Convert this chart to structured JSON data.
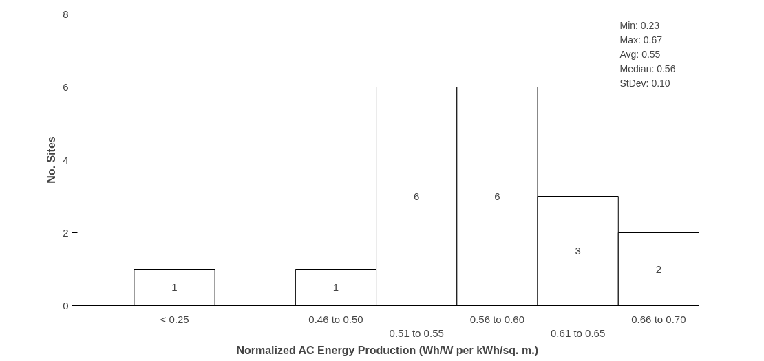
{
  "chart_data": {
    "type": "bar",
    "xlabel": "Normalized AC Energy Production (Wh/W per kWh/sq. m.)",
    "ylabel": "No. Sites",
    "categories": [
      "< 0.25",
      null,
      "0.46 to 0.50",
      "0.51 to 0.55",
      "0.56 to 0.60",
      "0.61 to 0.65",
      "0.66 to 0.70"
    ],
    "values": [
      1,
      null,
      1,
      6,
      6,
      3,
      2
    ],
    "color": "#ffffff",
    "data_labels": true,
    "ylim": [
      0,
      8
    ],
    "yticks": [
      0,
      2,
      4,
      6,
      8
    ],
    "grid": false,
    "annotations": [
      "Min: 0.23",
      "Max: 0.67",
      "Avg: 0.55",
      "Median: 0.56",
      "StDev: 0.10"
    ]
  }
}
